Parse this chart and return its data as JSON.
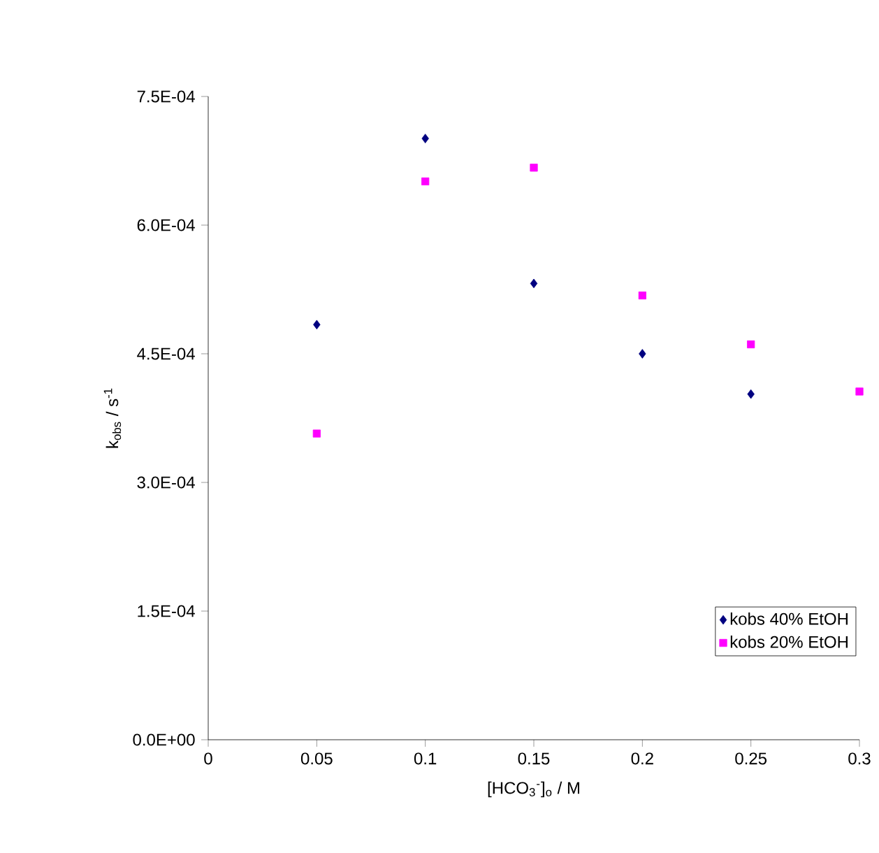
{
  "chart_data": {
    "type": "scatter",
    "xlabel": "[HCO$_{3}$$^{-}$]$_{o}$ / M",
    "ylabel": "k$_{obs}$ / s$^{-1}$",
    "xlim": [
      0,
      0.3
    ],
    "xticks": [
      0,
      0.05,
      0.1,
      0.15,
      0.2,
      0.25,
      0.3
    ],
    "ylim": [
      0,
      0.00075
    ],
    "yticks": [
      {
        "value": 0,
        "label": "0.0E+00"
      },
      {
        "value": 0.00015,
        "label": "1.5E-04"
      },
      {
        "value": 0.0003,
        "label": "3.0E-04"
      },
      {
        "value": 0.00045,
        "label": "4.5E-04"
      },
      {
        "value": 0.0006,
        "label": "6.0E-04"
      },
      {
        "value": 0.00075,
        "label": "7.5E-04"
      }
    ],
    "grid": false,
    "legend": "bottom right",
    "series": [
      {
        "name": "kobs 40% EtOH",
        "color": "#000080",
        "marker": "diamond",
        "x": [
          0.05,
          0.1,
          0.15,
          0.2,
          0.25
        ],
        "values": [
          0.000484,
          0.000701,
          0.000532,
          0.00045,
          0.000403
        ]
      },
      {
        "name": "kobs 20% EtOH",
        "color": "#ff00ff",
        "marker": "square",
        "x": [
          0.05,
          0.1,
          0.15,
          0.2,
          0.25,
          0.3
        ],
        "values": [
          0.000357,
          0.000651,
          0.000667,
          0.000518,
          0.000461,
          0.000406
        ]
      }
    ]
  }
}
